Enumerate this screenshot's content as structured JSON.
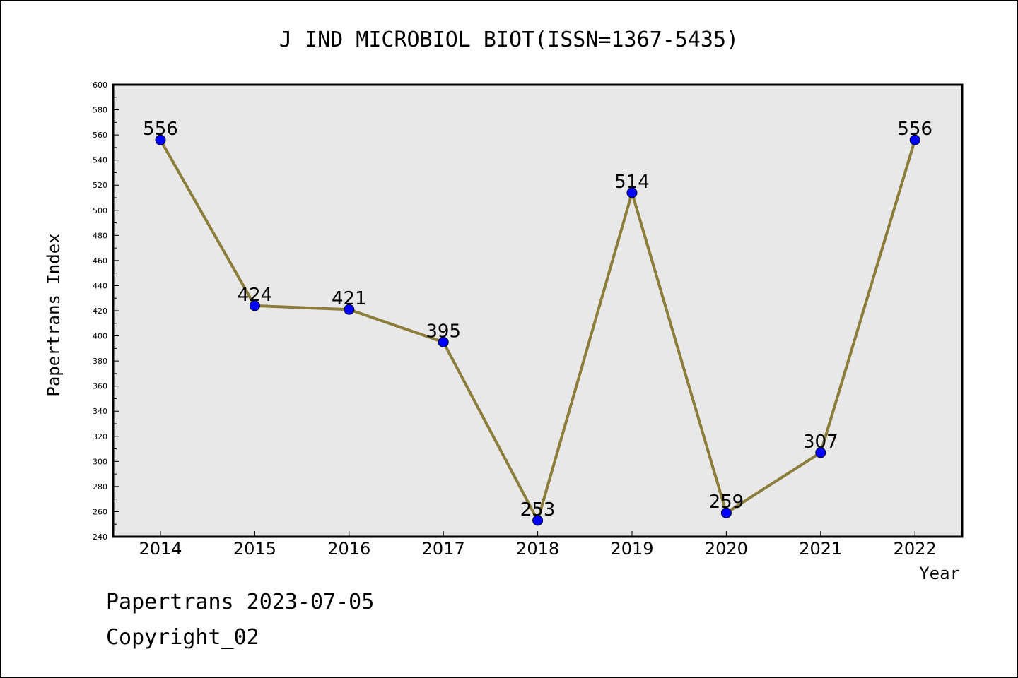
{
  "chart_data": {
    "type": "line",
    "title": "J IND MICROBIOL BIOT(ISSN=1367-5435)",
    "xlabel": "Year",
    "ylabel": "Papertrans Index",
    "categories": [
      "2014",
      "2015",
      "2016",
      "2017",
      "2018",
      "2019",
      "2020",
      "2021",
      "2022"
    ],
    "values": [
      556,
      424,
      421,
      395,
      253,
      514,
      259,
      307,
      556
    ],
    "ylim": [
      240,
      600
    ],
    "yticks": [
      240,
      260,
      280,
      300,
      320,
      340,
      360,
      380,
      400,
      420,
      440,
      460,
      480,
      500,
      520,
      540,
      560,
      580,
      600
    ],
    "grid": false,
    "colors": {
      "line": "#8b7d3a",
      "marker": "#0000ff",
      "plot_bg": "#e8e8e8"
    }
  },
  "footer": {
    "date_line": "Papertrans 2023-07-05",
    "copyright": "Copyright_02"
  }
}
